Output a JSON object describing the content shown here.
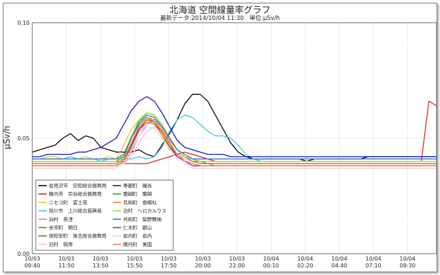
{
  "chart_data": {
    "type": "line",
    "title": "北海道 空間線量率グラフ",
    "subtitle": "最新データ:2014/10/04 11:30　単位:μSv/h",
    "ylabel": "μSv/h",
    "xlabel": "",
    "ylim": [
      0.0,
      0.1
    ],
    "yticks": [
      "0.00",
      "0.05",
      "0.10"
    ],
    "ytick_values": [
      0.0,
      0.05,
      0.1
    ],
    "xticks": [
      {
        "date": "10/03",
        "time": "09:40"
      },
      {
        "date": "10/03",
        "time": "11:50"
      },
      {
        "date": "10/03",
        "time": "13:50"
      },
      {
        "date": "10/03",
        "time": "15:50"
      },
      {
        "date": "10/03",
        "time": "17:50"
      },
      {
        "date": "10/03",
        "time": "20:00"
      },
      {
        "date": "10/03",
        "time": "22:00"
      },
      {
        "date": "10/04",
        "time": "00:10"
      },
      {
        "date": "10/04",
        "time": "02:20"
      },
      {
        "date": "10/04",
        "time": "04:40"
      },
      {
        "date": "10/04",
        "time": "07:10"
      },
      {
        "date": "10/04",
        "time": "09:30"
      }
    ],
    "grid": true,
    "legend_placement": "bottom-left",
    "series": [
      {
        "name": "岩見沢市　空知総合振興局",
        "color": "#000000",
        "values": [
          0.044,
          0.045,
          0.046,
          0.047,
          0.05,
          0.052,
          0.049,
          0.051,
          0.05,
          0.046,
          0.045,
          0.044,
          0.044,
          0.044,
          0.045,
          0.043,
          0.042,
          0.047,
          0.052,
          0.058,
          0.065,
          0.069,
          0.069,
          0.066,
          0.06,
          0.054,
          0.048,
          0.044,
          0.042,
          0.041,
          0.041,
          0.041,
          0.041,
          0.041,
          0.041,
          0.041,
          0.04,
          0.041,
          0.041,
          0.041,
          0.041,
          0.041,
          0.041,
          0.041,
          0.042,
          0.042,
          0.042,
          0.042,
          0.042,
          0.042,
          0.042,
          0.042,
          0.042,
          0.042
        ]
      },
      {
        "name": "稚内市　宗谷総合振興局",
        "color": "#e02020",
        "values": [
          0.039,
          0.039,
          0.039,
          0.039,
          0.039,
          0.039,
          0.039,
          0.039,
          0.039,
          0.039,
          0.039,
          0.039,
          0.039,
          0.039,
          0.039,
          0.039,
          0.04,
          0.041,
          0.042,
          0.043,
          0.044,
          0.043,
          0.042,
          0.041,
          0.04,
          0.04,
          0.04,
          0.04,
          0.04,
          0.04,
          0.04,
          0.04,
          0.04,
          0.04,
          0.04,
          0.04,
          0.04,
          0.04,
          0.04,
          0.04,
          0.04,
          0.04,
          0.04,
          0.04,
          0.04,
          0.04,
          0.04,
          0.04,
          0.04,
          0.04,
          0.04,
          0.04,
          0.066,
          0.064
        ]
      },
      {
        "name": "ニセコ町　富士見",
        "color": "#f0c020",
        "values": [
          0.041,
          0.041,
          0.042,
          0.042,
          0.041,
          0.042,
          0.041,
          0.042,
          0.041,
          0.041,
          0.042,
          0.041,
          0.047,
          0.054,
          0.058,
          0.058,
          0.056,
          0.051,
          0.046,
          0.043,
          0.042,
          0.041,
          0.04,
          0.04,
          0.04,
          0.04,
          0.04,
          0.04,
          0.04,
          0.04,
          0.04,
          0.04,
          0.04,
          0.04,
          0.04,
          0.04,
          0.04,
          0.04,
          0.04,
          0.04,
          0.04,
          0.04,
          0.04,
          0.04,
          0.04,
          0.04,
          0.04,
          0.04,
          0.04,
          0.04,
          0.04,
          0.04,
          0.04,
          0.04
        ]
      },
      {
        "name": "旭川市　上川総合振興局",
        "color": "#3cc8d8",
        "values": [
          0.041,
          0.041,
          0.041,
          0.041,
          0.041,
          0.042,
          0.041,
          0.041,
          0.041,
          0.04,
          0.041,
          0.041,
          0.041,
          0.041,
          0.042,
          0.041,
          0.042,
          0.046,
          0.053,
          0.058,
          0.06,
          0.059,
          0.056,
          0.053,
          0.051,
          0.051,
          0.05,
          0.047,
          0.043,
          0.041,
          0.04,
          0.04,
          0.04,
          0.04,
          0.04,
          0.04,
          0.04,
          0.04,
          0.04,
          0.04,
          0.04,
          0.04,
          0.04,
          0.04,
          0.04,
          0.04,
          0.04,
          0.04,
          0.04,
          0.04,
          0.04,
          0.04,
          0.04,
          0.04
        ]
      },
      {
        "name": "泊村　茶津",
        "color": "#a0a0a0",
        "values": [
          0.039,
          0.039,
          0.039,
          0.039,
          0.039,
          0.039,
          0.039,
          0.039,
          0.039,
          0.039,
          0.039,
          0.039,
          0.039,
          0.044,
          0.051,
          0.056,
          0.058,
          0.055,
          0.05,
          0.045,
          0.042,
          0.04,
          0.039,
          0.039,
          0.038,
          0.038,
          0.038,
          0.038,
          0.038,
          0.038,
          0.038,
          0.038,
          0.038,
          0.038,
          0.038,
          0.038,
          0.038,
          0.038,
          0.038,
          0.038,
          0.038,
          0.038,
          0.038,
          0.038,
          0.038,
          0.038,
          0.038,
          0.038,
          0.038,
          0.038,
          0.038,
          0.038,
          0.038,
          0.038
        ]
      },
      {
        "name": "余市町　朝日",
        "color": "#c05818",
        "values": [
          0.04,
          0.04,
          0.04,
          0.04,
          0.04,
          0.04,
          0.04,
          0.04,
          0.04,
          0.04,
          0.04,
          0.04,
          0.04,
          0.046,
          0.054,
          0.058,
          0.057,
          0.053,
          0.048,
          0.043,
          0.041,
          0.04,
          0.039,
          0.039,
          0.039,
          0.039,
          0.039,
          0.039,
          0.039,
          0.039,
          0.039,
          0.039,
          0.039,
          0.039,
          0.039,
          0.039,
          0.039,
          0.039,
          0.039,
          0.039,
          0.039,
          0.039,
          0.039,
          0.039,
          0.039,
          0.039,
          0.039,
          0.039,
          0.039,
          0.039,
          0.039,
          0.039,
          0.039,
          0.039
        ]
      },
      {
        "name": "倶知安町　後志総合振興局",
        "color": "#6a7828",
        "values": [
          0.038,
          0.038,
          0.038,
          0.038,
          0.038,
          0.038,
          0.038,
          0.038,
          0.038,
          0.038,
          0.038,
          0.038,
          0.04,
          0.047,
          0.055,
          0.059,
          0.057,
          0.052,
          0.046,
          0.042,
          0.04,
          0.039,
          0.038,
          0.038,
          0.038,
          0.038,
          0.038,
          0.038,
          0.038,
          0.038,
          0.038,
          0.038,
          0.038,
          0.038,
          0.038,
          0.038,
          0.038,
          0.038,
          0.038,
          0.038,
          0.038,
          0.038,
          0.038,
          0.038,
          0.038,
          0.038,
          0.038,
          0.038,
          0.038,
          0.038,
          0.038,
          0.038,
          0.038,
          0.038
        ]
      },
      {
        "name": "泊村　照岸",
        "color": "#ffb0f0",
        "values": [
          0.039,
          0.039,
          0.039,
          0.039,
          0.039,
          0.039,
          0.039,
          0.039,
          0.039,
          0.039,
          0.039,
          0.039,
          0.039,
          0.042,
          0.048,
          0.053,
          0.055,
          0.052,
          0.047,
          0.043,
          0.041,
          0.04,
          0.039,
          0.039,
          0.039,
          0.039,
          0.039,
          0.039,
          0.039,
          0.039,
          0.039,
          0.039,
          0.039,
          0.039,
          0.039,
          0.039,
          0.039,
          0.039,
          0.039,
          0.039,
          0.039,
          0.039,
          0.039,
          0.039,
          0.039,
          0.039,
          0.039,
          0.039,
          0.039,
          0.039,
          0.039,
          0.039,
          0.039,
          0.039
        ]
      },
      {
        "name": "寿都町　磯谷",
        "color": "#1010c0",
        "values": [
          0.042,
          0.042,
          0.043,
          0.043,
          0.043,
          0.043,
          0.044,
          0.044,
          0.045,
          0.046,
          0.048,
          0.05,
          0.056,
          0.062,
          0.066,
          0.068,
          0.066,
          0.061,
          0.055,
          0.049,
          0.046,
          0.045,
          0.044,
          0.043,
          0.043,
          0.043,
          0.042,
          0.042,
          0.042,
          0.042,
          0.042,
          0.042,
          0.042,
          0.042,
          0.042,
          0.042,
          0.042,
          0.042,
          0.042,
          0.042,
          0.042,
          0.042,
          0.042,
          0.042,
          0.042,
          0.042,
          0.042,
          0.042,
          0.042,
          0.042,
          0.042,
          0.042,
          0.042,
          0.042
        ]
      },
      {
        "name": "蘭越町　蘭越",
        "color": "#30a030",
        "values": [
          0.04,
          0.04,
          0.04,
          0.04,
          0.04,
          0.04,
          0.04,
          0.04,
          0.04,
          0.04,
          0.04,
          0.04,
          0.042,
          0.05,
          0.057,
          0.061,
          0.06,
          0.056,
          0.05,
          0.045,
          0.042,
          0.04,
          0.04,
          0.039,
          0.039,
          0.039,
          0.039,
          0.039,
          0.039,
          0.039,
          0.039,
          0.039,
          0.039,
          0.039,
          0.039,
          0.039,
          0.039,
          0.039,
          0.039,
          0.039,
          0.039,
          0.039,
          0.039,
          0.039,
          0.039,
          0.039,
          0.039,
          0.039,
          0.039,
          0.039,
          0.039,
          0.039,
          0.039,
          0.039
        ]
      },
      {
        "name": "共和町　南幌似",
        "color": "#f08010",
        "values": [
          0.039,
          0.039,
          0.039,
          0.039,
          0.039,
          0.039,
          0.039,
          0.039,
          0.039,
          0.039,
          0.039,
          0.039,
          0.041,
          0.048,
          0.055,
          0.059,
          0.058,
          0.054,
          0.049,
          0.045,
          0.042,
          0.04,
          0.039,
          0.039,
          0.039,
          0.039,
          0.039,
          0.039,
          0.039,
          0.039,
          0.039,
          0.039,
          0.039,
          0.039,
          0.039,
          0.039,
          0.039,
          0.039,
          0.039,
          0.039,
          0.039,
          0.039,
          0.039,
          0.039,
          0.039,
          0.039,
          0.039,
          0.039,
          0.039,
          0.039,
          0.039,
          0.039,
          0.039,
          0.039
        ]
      },
      {
        "name": "泊村　ヘロカルウス",
        "color": "#90e040",
        "values": [
          0.04,
          0.04,
          0.04,
          0.04,
          0.04,
          0.04,
          0.04,
          0.04,
          0.04,
          0.04,
          0.04,
          0.04,
          0.043,
          0.051,
          0.058,
          0.061,
          0.06,
          0.056,
          0.05,
          0.045,
          0.042,
          0.041,
          0.04,
          0.04,
          0.04,
          0.04,
          0.04,
          0.04,
          0.04,
          0.04,
          0.04,
          0.04,
          0.04,
          0.04,
          0.04,
          0.04,
          0.04,
          0.04,
          0.04,
          0.04,
          0.04,
          0.04,
          0.04,
          0.04,
          0.04,
          0.04,
          0.04,
          0.04,
          0.04,
          0.04,
          0.04,
          0.04,
          0.04,
          0.04
        ]
      },
      {
        "name": "共和町　梨野舞納",
        "color": "#3070d0",
        "values": [
          0.041,
          0.041,
          0.041,
          0.041,
          0.041,
          0.041,
          0.041,
          0.041,
          0.041,
          0.041,
          0.041,
          0.041,
          0.043,
          0.05,
          0.056,
          0.06,
          0.059,
          0.055,
          0.05,
          0.045,
          0.043,
          0.041,
          0.041,
          0.041,
          0.041,
          0.041,
          0.041,
          0.041,
          0.041,
          0.041,
          0.041,
          0.041,
          0.041,
          0.041,
          0.041,
          0.041,
          0.041,
          0.041,
          0.041,
          0.041,
          0.041,
          0.041,
          0.041,
          0.041,
          0.041,
          0.041,
          0.041,
          0.041,
          0.041,
          0.041,
          0.041,
          0.041,
          0.041,
          0.041
        ]
      },
      {
        "name": "仁木町　銀山",
        "color": "#a020c0",
        "values": [
          0.038,
          0.038,
          0.038,
          0.038,
          0.038,
          0.038,
          0.038,
          0.038,
          0.038,
          0.038,
          0.038,
          0.038,
          0.04,
          0.047,
          0.054,
          0.057,
          0.056,
          0.052,
          0.047,
          0.042,
          0.04,
          0.038,
          0.038,
          0.038,
          0.038,
          0.038,
          0.038,
          0.038,
          0.038,
          0.038,
          0.038,
          0.038,
          0.038,
          0.038,
          0.038,
          0.038,
          0.038,
          0.038,
          0.038,
          0.038,
          0.038,
          0.038,
          0.038,
          0.038,
          0.038,
          0.038,
          0.038,
          0.038,
          0.038,
          0.038,
          0.038,
          0.038,
          0.038,
          0.038
        ]
      },
      {
        "name": "岩内町　岩内",
        "color": "#d8d8d8",
        "values": [
          0.037,
          0.037,
          0.037,
          0.037,
          0.037,
          0.037,
          0.037,
          0.037,
          0.037,
          0.037,
          0.037,
          0.037,
          0.039,
          0.045,
          0.051,
          0.055,
          0.054,
          0.05,
          0.045,
          0.041,
          0.039,
          0.037,
          0.037,
          0.037,
          0.037,
          0.037,
          0.037,
          0.037,
          0.037,
          0.037,
          0.037,
          0.037,
          0.037,
          0.037,
          0.037,
          0.037,
          0.037,
          0.037,
          0.037,
          0.037,
          0.037,
          0.037,
          0.037,
          0.037,
          0.037,
          0.037,
          0.037,
          0.037,
          0.037,
          0.037,
          0.037,
          0.037,
          0.037,
          0.037
        ]
      },
      {
        "name": "積丹町　美国",
        "color": "#f07850",
        "values": [
          0.038,
          0.038,
          0.038,
          0.038,
          0.038,
          0.038,
          0.038,
          0.038,
          0.038,
          0.038,
          0.038,
          0.038,
          0.04,
          0.046,
          0.053,
          0.057,
          0.056,
          0.052,
          0.047,
          0.043,
          0.04,
          0.039,
          0.038,
          0.038,
          0.038,
          0.038,
          0.038,
          0.038,
          0.038,
          0.038,
          0.038,
          0.038,
          0.038,
          0.038,
          0.038,
          0.038,
          0.038,
          0.038,
          0.038,
          0.038,
          0.038,
          0.038,
          0.038,
          0.038,
          0.038,
          0.038,
          0.038,
          0.038,
          0.038,
          0.038,
          0.038,
          0.038,
          0.038,
          0.038
        ]
      }
    ]
  }
}
